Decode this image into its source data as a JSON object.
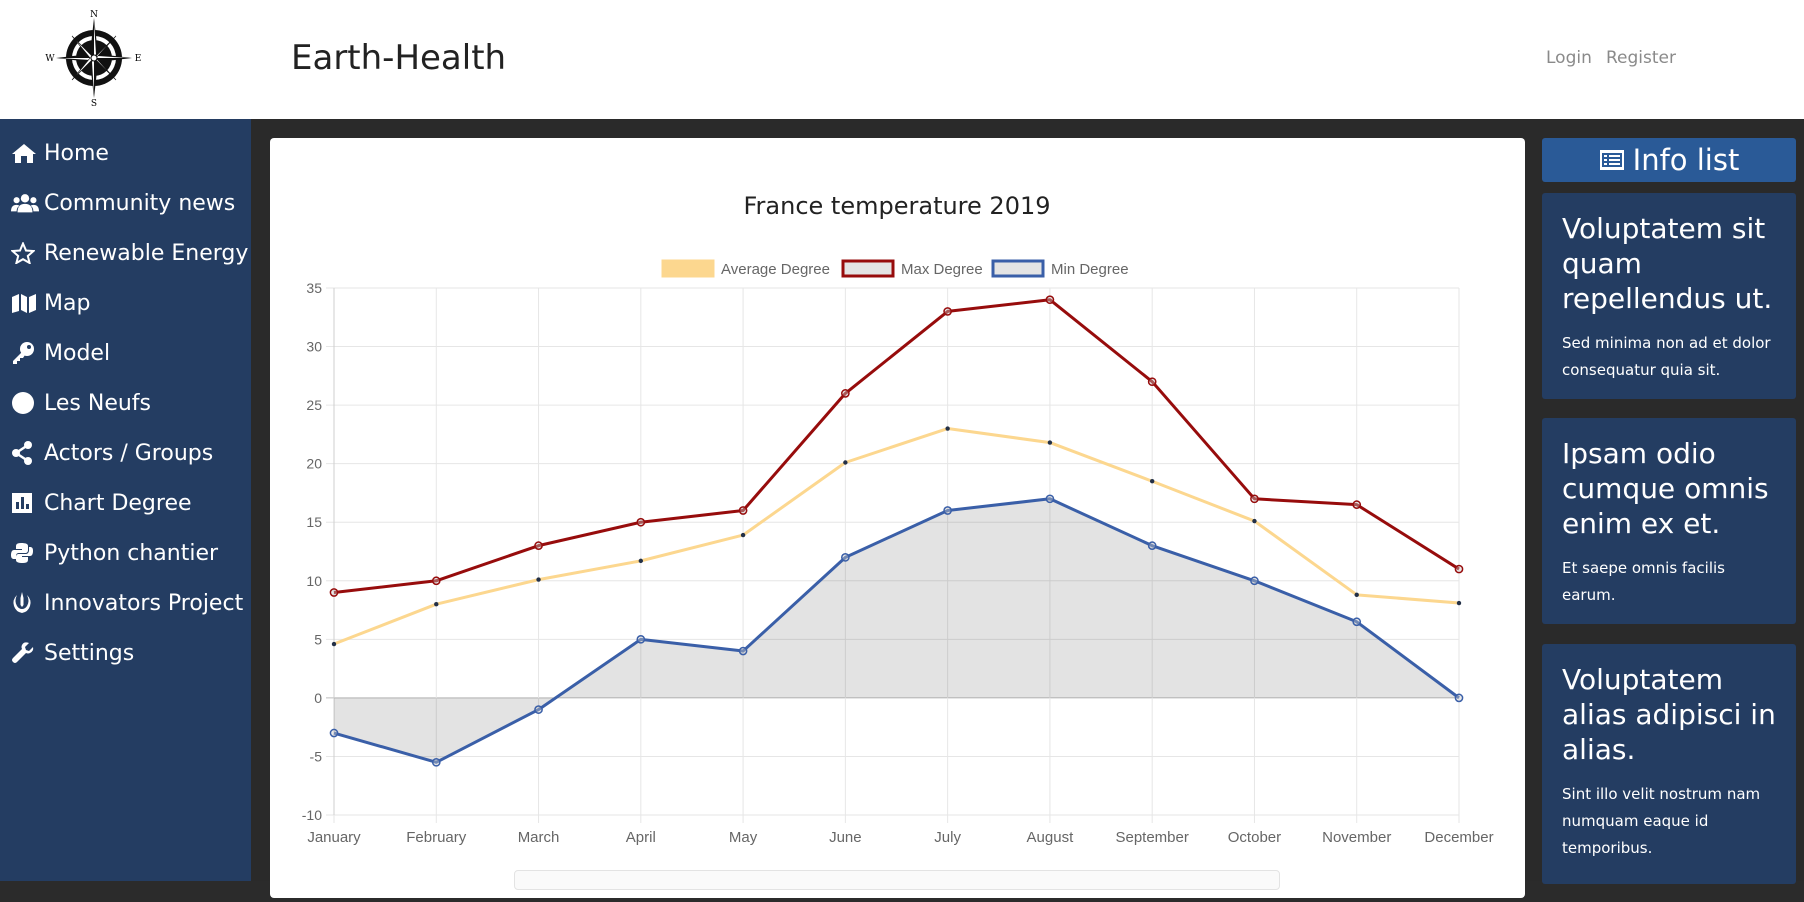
{
  "header": {
    "title": "Earth-Health",
    "login": "Login",
    "register": "Register",
    "compass": {
      "n": "N",
      "s": "S",
      "e": "E",
      "w": "W"
    }
  },
  "sidebar": {
    "items": [
      {
        "label": "Home",
        "icon": "home-icon"
      },
      {
        "label": "Community news",
        "icon": "users-icon"
      },
      {
        "label": "Renewable Energy",
        "icon": "star-icon"
      },
      {
        "label": "Map",
        "icon": "map-icon"
      },
      {
        "label": "Model",
        "icon": "key-icon"
      },
      {
        "label": "Les Neufs",
        "icon": "circle-icon"
      },
      {
        "label": "Actors / Groups",
        "icon": "share-icon"
      },
      {
        "label": "Chart Degree",
        "icon": "chart-icon"
      },
      {
        "label": "Python chantier",
        "icon": "python-icon"
      },
      {
        "label": "Innovators Project",
        "icon": "jedi-icon"
      },
      {
        "label": "Settings",
        "icon": "wrench-icon"
      }
    ]
  },
  "info_list": {
    "title": "Info list",
    "cards": [
      {
        "title": "Voluptatem sit quam repellendus ut.",
        "body": "Sed minima non ad et dolor consequatur quia sit."
      },
      {
        "title": "Ipsam odio cumque omnis enim ex et.",
        "body": "Et saepe omnis facilis earum."
      },
      {
        "title": "Voluptatem alias adipisci in alias.",
        "body": "Sint illo velit nostrum nam numquam eaque id temporibus."
      }
    ]
  },
  "colors": {
    "header_bg": "#ffffff",
    "sidebar_bg": "#243d62",
    "info_header_bg": "#2a5a97",
    "content_bg": "#2a2a2a"
  },
  "chart_data": {
    "type": "line",
    "title": "France temperature 2019",
    "categories": [
      "January",
      "February",
      "March",
      "April",
      "May",
      "June",
      "July",
      "August",
      "September",
      "October",
      "November",
      "December"
    ],
    "ylim": [
      -10,
      35
    ],
    "yticks": [
      35,
      30,
      25,
      20,
      15,
      10,
      5,
      0,
      -5,
      -10
    ],
    "grid": true,
    "legend_position": "top",
    "series": [
      {
        "name": "Average Degree",
        "color": "#fcd78f",
        "fill": false,
        "values": [
          4.6,
          8,
          10.1,
          11.7,
          13.9,
          20.1,
          23,
          21.8,
          18.5,
          15.1,
          8.8,
          8.1
        ]
      },
      {
        "name": "Max Degree",
        "color": "#970c0c",
        "fill": false,
        "values": [
          9,
          10,
          13,
          15,
          16,
          26,
          33,
          34,
          27,
          17,
          16.5,
          11
        ]
      },
      {
        "name": "Min Degree",
        "color": "#3a5fa8",
        "fill": true,
        "values": [
          -3,
          -5.5,
          -1,
          5,
          4,
          12,
          16,
          17,
          13,
          10,
          6.5,
          0
        ]
      }
    ]
  }
}
